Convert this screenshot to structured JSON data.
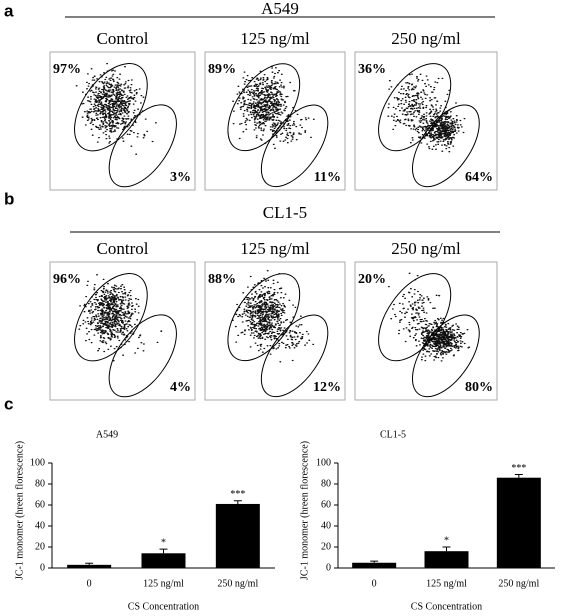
{
  "panels": [
    {
      "label": "a",
      "title": "A549",
      "plots": [
        {
          "title": "Control",
          "upper": "97%",
          "lower": "3%"
        },
        {
          "title": "125 ng/ml",
          "upper": "89%",
          "lower": "11%"
        },
        {
          "title": "250 ng/ml",
          "upper": "36%",
          "lower": "64%"
        }
      ]
    },
    {
      "label": "b",
      "title": "CL1-5",
      "plots": [
        {
          "title": "Control",
          "upper": "96%",
          "lower": "4%"
        },
        {
          "title": "125 ng/ml",
          "upper": "88%",
          "lower": "12%"
        },
        {
          "title": "250 ng/ml",
          "upper": "20%",
          "lower": "80%"
        }
      ]
    }
  ],
  "panel_c_label": "c",
  "chart_data": [
    {
      "type": "bar",
      "title": "A549",
      "y_label": "JC-1 monomer (hreen florescence)",
      "x_label": "CS Concentration",
      "categories": [
        "0",
        "125 ng/ml",
        "250 ng/ml"
      ],
      "values": [
        3,
        14,
        61
      ],
      "errors": [
        1.5,
        4,
        3
      ],
      "significance": [
        null,
        "*",
        "***"
      ],
      "color": "#000000",
      "ylim": [
        0,
        100
      ],
      "yticks": [
        0,
        20,
        40,
        60,
        80,
        100
      ]
    },
    {
      "type": "bar",
      "title": "CL1-5",
      "y_label": "JC-1 monomer (hreen florescence)",
      "x_label": "CS Concentration",
      "categories": [
        "0",
        "125 ng/ml",
        "250 ng/ml"
      ],
      "values": [
        5,
        16,
        86
      ],
      "errors": [
        1.5,
        4,
        3
      ],
      "significance": [
        null,
        "*",
        "***"
      ],
      "color": "#000000",
      "ylim": [
        0,
        100
      ],
      "yticks": [
        0,
        20,
        40,
        60,
        80,
        100
      ]
    }
  ]
}
